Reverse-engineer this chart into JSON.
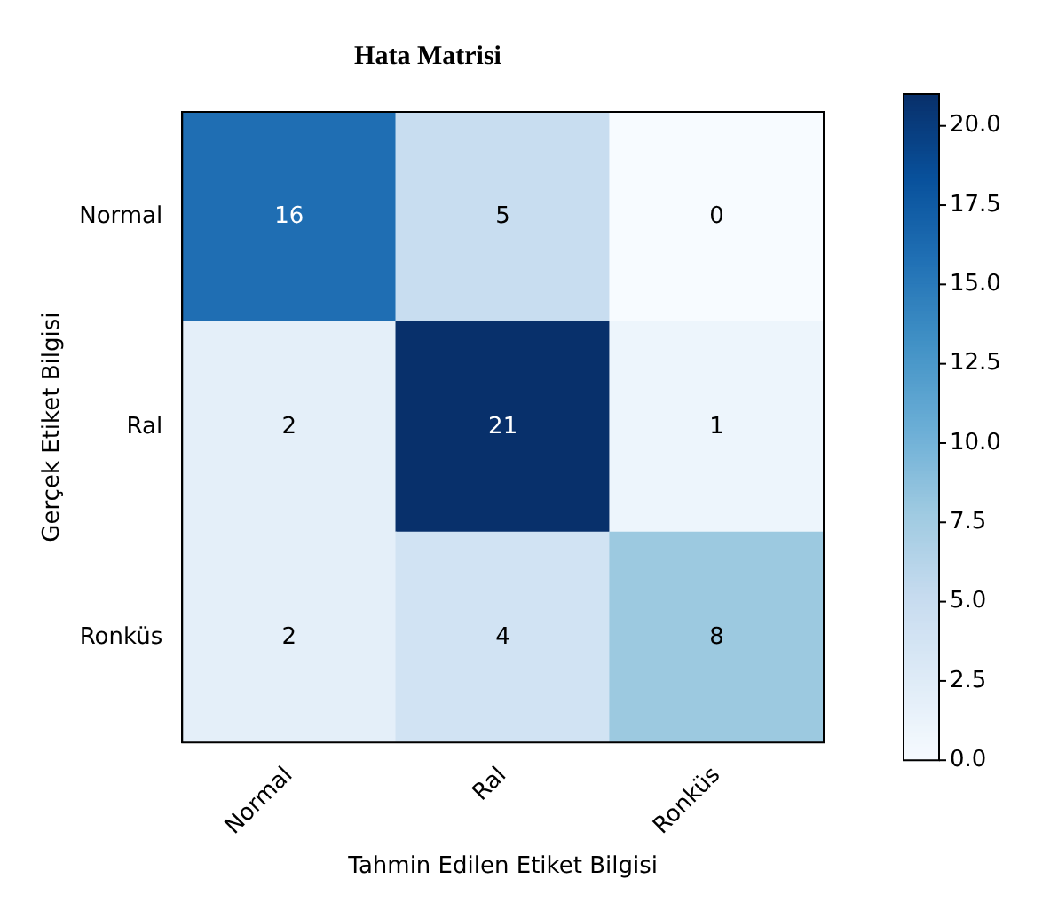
{
  "chart_data": {
    "type": "heatmap",
    "title": "Hata Matrisi",
    "xlabel": "Tahmin Edilen Etiket Bilgisi",
    "ylabel": "Gerçek Etiket Bilgisi",
    "categories": [
      "Normal",
      "Ral",
      "Ronküs"
    ],
    "y_categories": [
      "Normal",
      "Ral",
      "Ronküs"
    ],
    "cells": [
      [
        16,
        5,
        0
      ],
      [
        2,
        21,
        1
      ],
      [
        2,
        4,
        8
      ]
    ],
    "clim": [
      0,
      21
    ],
    "cticks": [
      {
        "value": 0,
        "label": "0.0"
      },
      {
        "value": 2.5,
        "label": "2.5"
      },
      {
        "value": 5,
        "label": "5.0"
      },
      {
        "value": 7.5,
        "label": "7.5"
      },
      {
        "value": 10,
        "label": "10.0"
      },
      {
        "value": 12.5,
        "label": "12.5"
      },
      {
        "value": 15,
        "label": "15.0"
      },
      {
        "value": 17.5,
        "label": "17.5"
      },
      {
        "value": 20,
        "label": "20.0"
      }
    ],
    "data_labels": true,
    "grid": false
  }
}
